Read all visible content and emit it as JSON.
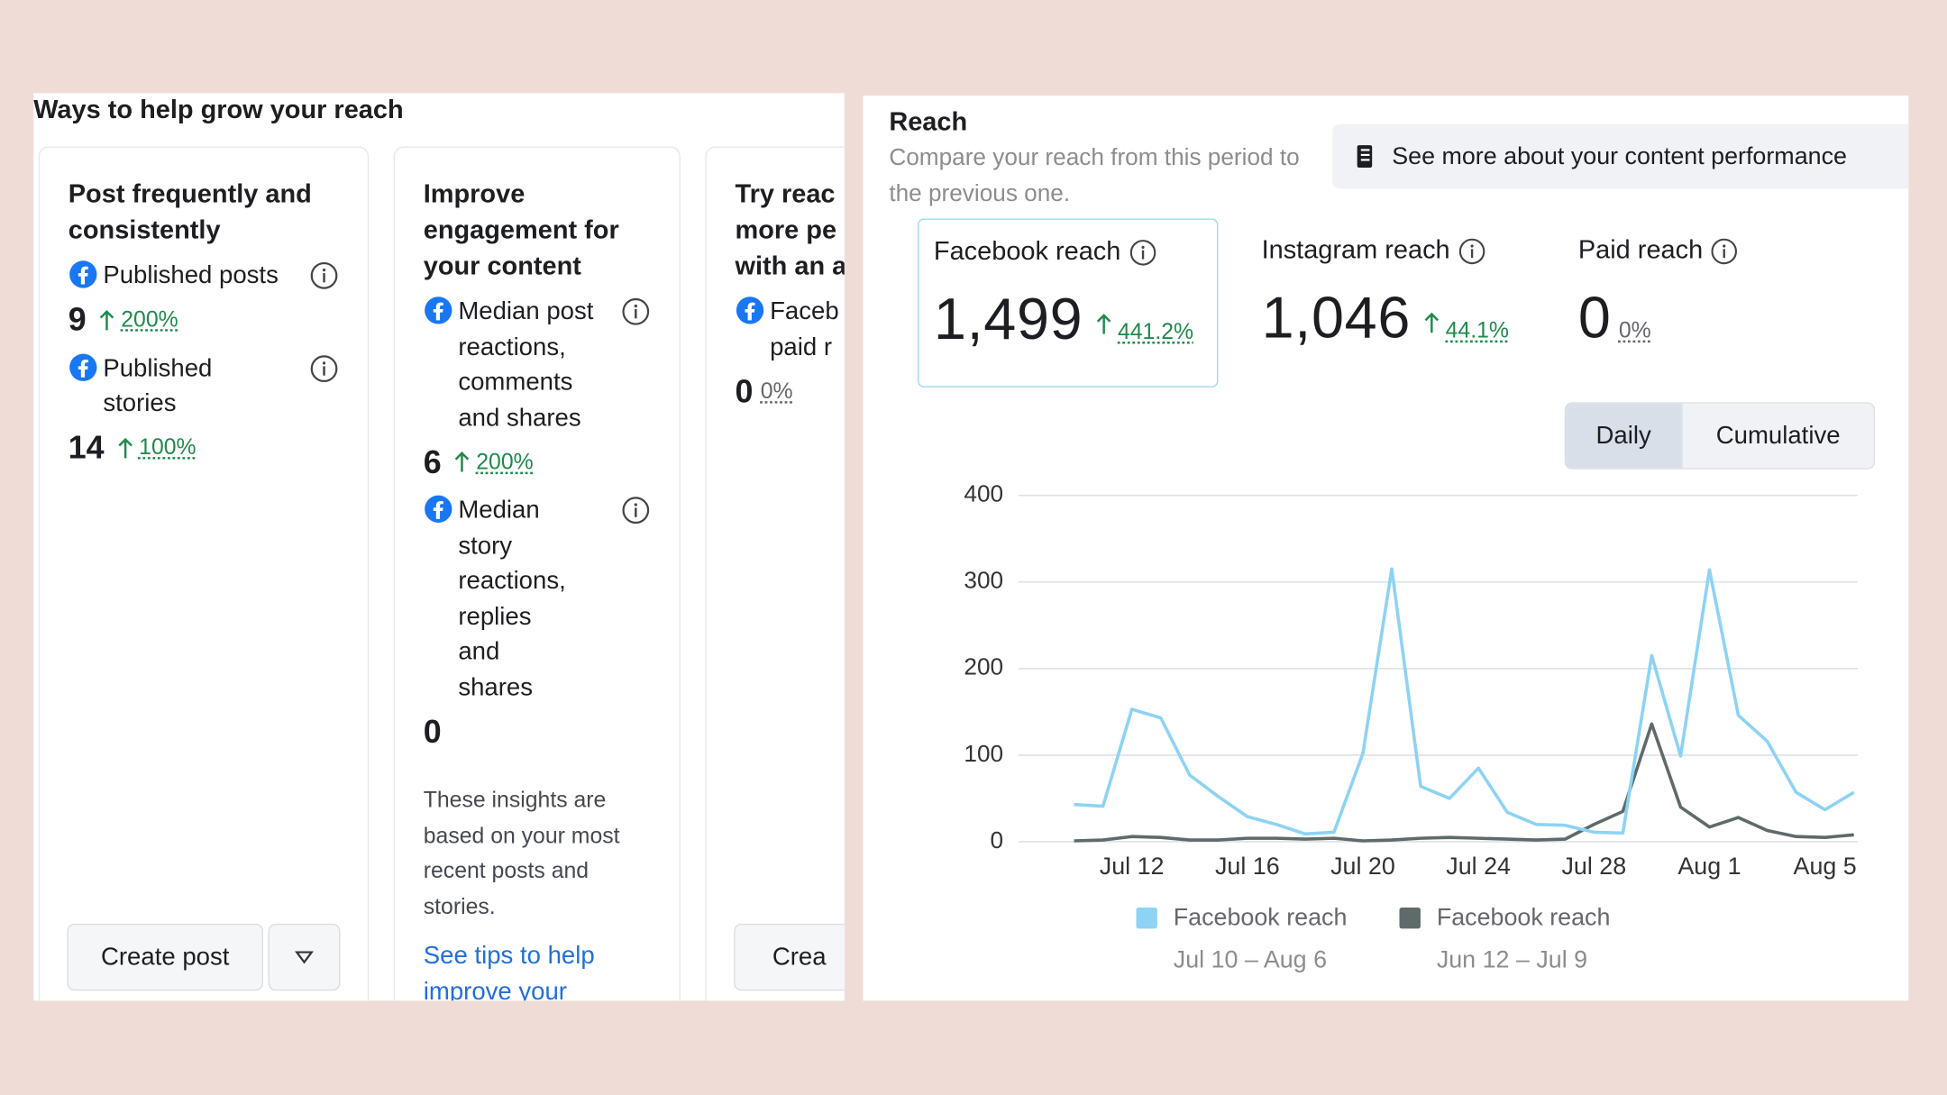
{
  "left_panel": {
    "title": "Ways to help grow your reach",
    "cards": [
      {
        "title": "Post frequently and consistently",
        "metrics": [
          {
            "label": "Published posts",
            "value": "9",
            "change": "200%"
          },
          {
            "label": "Published stories",
            "value": "14",
            "change": "100%"
          }
        ],
        "button": "Create post"
      },
      {
        "title": "Improve engagement for your content",
        "metrics": [
          {
            "label": "Median post reactions, comments and shares",
            "value": "6",
            "change": "200%"
          },
          {
            "label": "Median story reactions, replies and shares",
            "value": "0"
          }
        ],
        "note": "These insights are based on your most recent posts and stories.",
        "link": "See tips to help improve your content"
      },
      {
        "title_lines": [
          "Try reac",
          "more pe",
          "with an a"
        ],
        "metrics": [
          {
            "label_lines": [
              "Faceb",
              "paid r"
            ],
            "value": "0",
            "change": "0%"
          }
        ],
        "button": "Crea"
      }
    ]
  },
  "reach_panel": {
    "title": "Reach",
    "subtitle": "Compare your reach from this period to the previous one.",
    "button": "See more about your content performance",
    "stats": [
      {
        "label": "Facebook reach",
        "value": "1,499",
        "change": "441.2%"
      },
      {
        "label": "Instagram reach",
        "value": "1,046",
        "change": "44.1%"
      },
      {
        "label": "Paid reach",
        "value": "0",
        "change": "0%"
      }
    ],
    "toggle": [
      "Daily",
      "Cumulative"
    ]
  },
  "chart_data": {
    "type": "line",
    "categories": [
      null,
      null,
      "Jul 12",
      null,
      null,
      null,
      "Jul 16",
      null,
      null,
      null,
      "Jul 20",
      null,
      null,
      null,
      "Jul 24",
      null,
      null,
      null,
      "Jul 28",
      null,
      null,
      null,
      "Aug 1",
      null,
      null,
      null,
      "Aug 5",
      null
    ],
    "series": [
      {
        "name": "Facebook reach",
        "period": "Jul 10 – Aug 6",
        "color": "#8dd3f3",
        "values": [
          43,
          41,
          153,
          143,
          77,
          52,
          29,
          20,
          9,
          11,
          102,
          315,
          64,
          50,
          85,
          34,
          20,
          19,
          11,
          10,
          215,
          99,
          314,
          146,
          116,
          57,
          37,
          57
        ]
      },
      {
        "name": "Facebook reach",
        "period": "Jun 12 – Jul 9",
        "color": "#5f6a6a",
        "values": [
          1,
          2,
          6,
          5,
          2,
          2,
          4,
          4,
          3,
          4,
          1,
          2,
          4,
          5,
          4,
          3,
          2,
          3,
          20,
          35,
          136,
          40,
          17,
          28,
          13,
          6,
          5,
          8
        ]
      }
    ],
    "ylim": [
      0,
      400
    ],
    "yticks": [
      0,
      100,
      200,
      300,
      400
    ],
    "grid": true
  }
}
